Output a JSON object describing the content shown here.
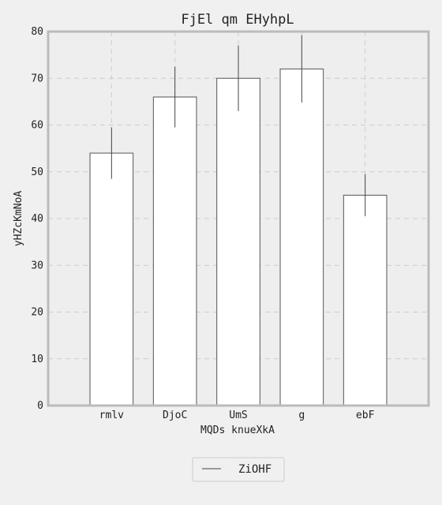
{
  "chart_data": {
    "type": "bar",
    "title": "FjEl qm EHyhpL",
    "xlabel": "MQDs knueXkA",
    "ylabel": "yHZcKmNoA",
    "categories": [
      "rmlv",
      "DjoC",
      "UmS",
      "g",
      "ebF"
    ],
    "series": [
      {
        "name": "ZiOHF",
        "values": [
          54,
          66,
          70,
          72,
          45
        ],
        "errors": [
          5.5,
          6.5,
          7.0,
          7.2,
          4.5
        ]
      }
    ],
    "ylim": [
      0,
      80
    ],
    "yticks": [
      0,
      10,
      20,
      30,
      40,
      50,
      60,
      70,
      80
    ],
    "grid": true,
    "legend_position": "bottom-center",
    "colors": {
      "background": "#f0f0f0",
      "plot_background": "#eeeeee",
      "bar_fill": "#ffffff",
      "bar_edge": "#555555",
      "error_bar": "#444444",
      "frame": "#bbbbbb",
      "grid": "#cccccc"
    }
  }
}
